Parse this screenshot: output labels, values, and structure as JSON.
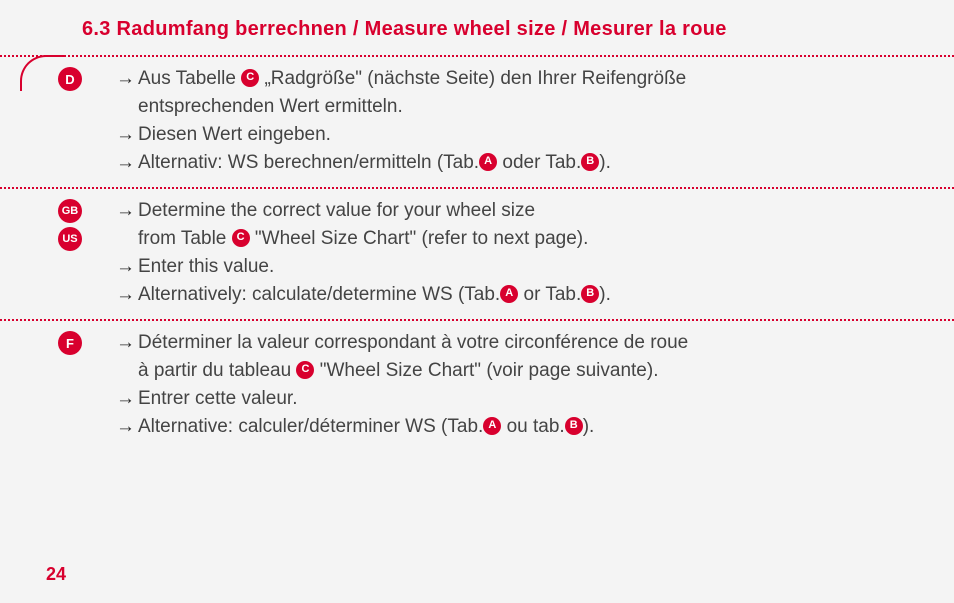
{
  "colors": {
    "accent": "#d8002e",
    "text": "#444444",
    "background": "#f4f4f4"
  },
  "heading": "6.3 Radumfang berrechnen / Measure wheel size / Mesurer la roue",
  "pageNumber": "24",
  "badges": {
    "A": "A",
    "B": "B",
    "C": "C",
    "D": "D",
    "F": "F",
    "GB": "GB",
    "US": "US"
  },
  "sections": [
    {
      "lang": [
        "D"
      ],
      "lines": [
        {
          "pre": "Aus Tabelle ",
          "badge": "C",
          "post": " „Radgröße\" (nächste Seite) den Ihrer Reifengröße",
          "cont": "entsprechenden Wert ermitteln."
        },
        {
          "pre": "Diesen Wert eingeben."
        },
        {
          "pre": "Alternativ: WS berechnen/ermitteln (Tab.",
          "badge": "A",
          "mid": " oder Tab.",
          "badge2": "B",
          "post": ")."
        }
      ]
    },
    {
      "lang": [
        "GB",
        "US"
      ],
      "lines": [
        {
          "pre": "Determine the correct value for your wheel size",
          "cont_pre": "from Table ",
          "cont_badge": "C",
          "cont_post": " \"Wheel Size Chart\" (refer to next page)."
        },
        {
          "pre": "Enter this value."
        },
        {
          "pre": "Alternatively: calculate/determine WS (Tab.",
          "badge": "A",
          "mid": " or Tab.",
          "badge2": "B",
          "post": ")."
        }
      ]
    },
    {
      "lang": [
        "F"
      ],
      "lines": [
        {
          "pre": "Déterminer la valeur correspondant à votre circonférence de roue",
          "cont_pre": "à partir du tableau ",
          "cont_badge": "C",
          "cont_post": " \"Wheel Size Chart\" (voir page suivante)."
        },
        {
          "pre": "Entrer cette valeur."
        },
        {
          "pre": "Alternative: calculer/déterminer WS (Tab.",
          "badge": "A",
          "mid": " ou tab.",
          "badge2": "B",
          "post": ")."
        }
      ]
    }
  ]
}
